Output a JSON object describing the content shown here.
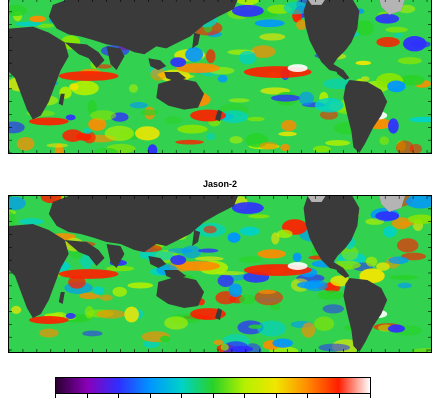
{
  "panels": [
    {
      "title": "",
      "satellite": "top-panel"
    },
    {
      "title": "Jason-2",
      "satellite": "bottom-panel"
    }
  ],
  "colorbar": {
    "stops": [
      "#2a0030",
      "#8a00b8",
      "#2f2fff",
      "#0096ff",
      "#00d2c8",
      "#28d228",
      "#b4f000",
      "#f0e600",
      "#ff8c00",
      "#ff1e00",
      "#ffffff"
    ],
    "tick_labels": []
  },
  "colors": {
    "land": "#3a3a3a",
    "ice": "#b4b4b4",
    "ocean_base": "#32d250"
  }
}
